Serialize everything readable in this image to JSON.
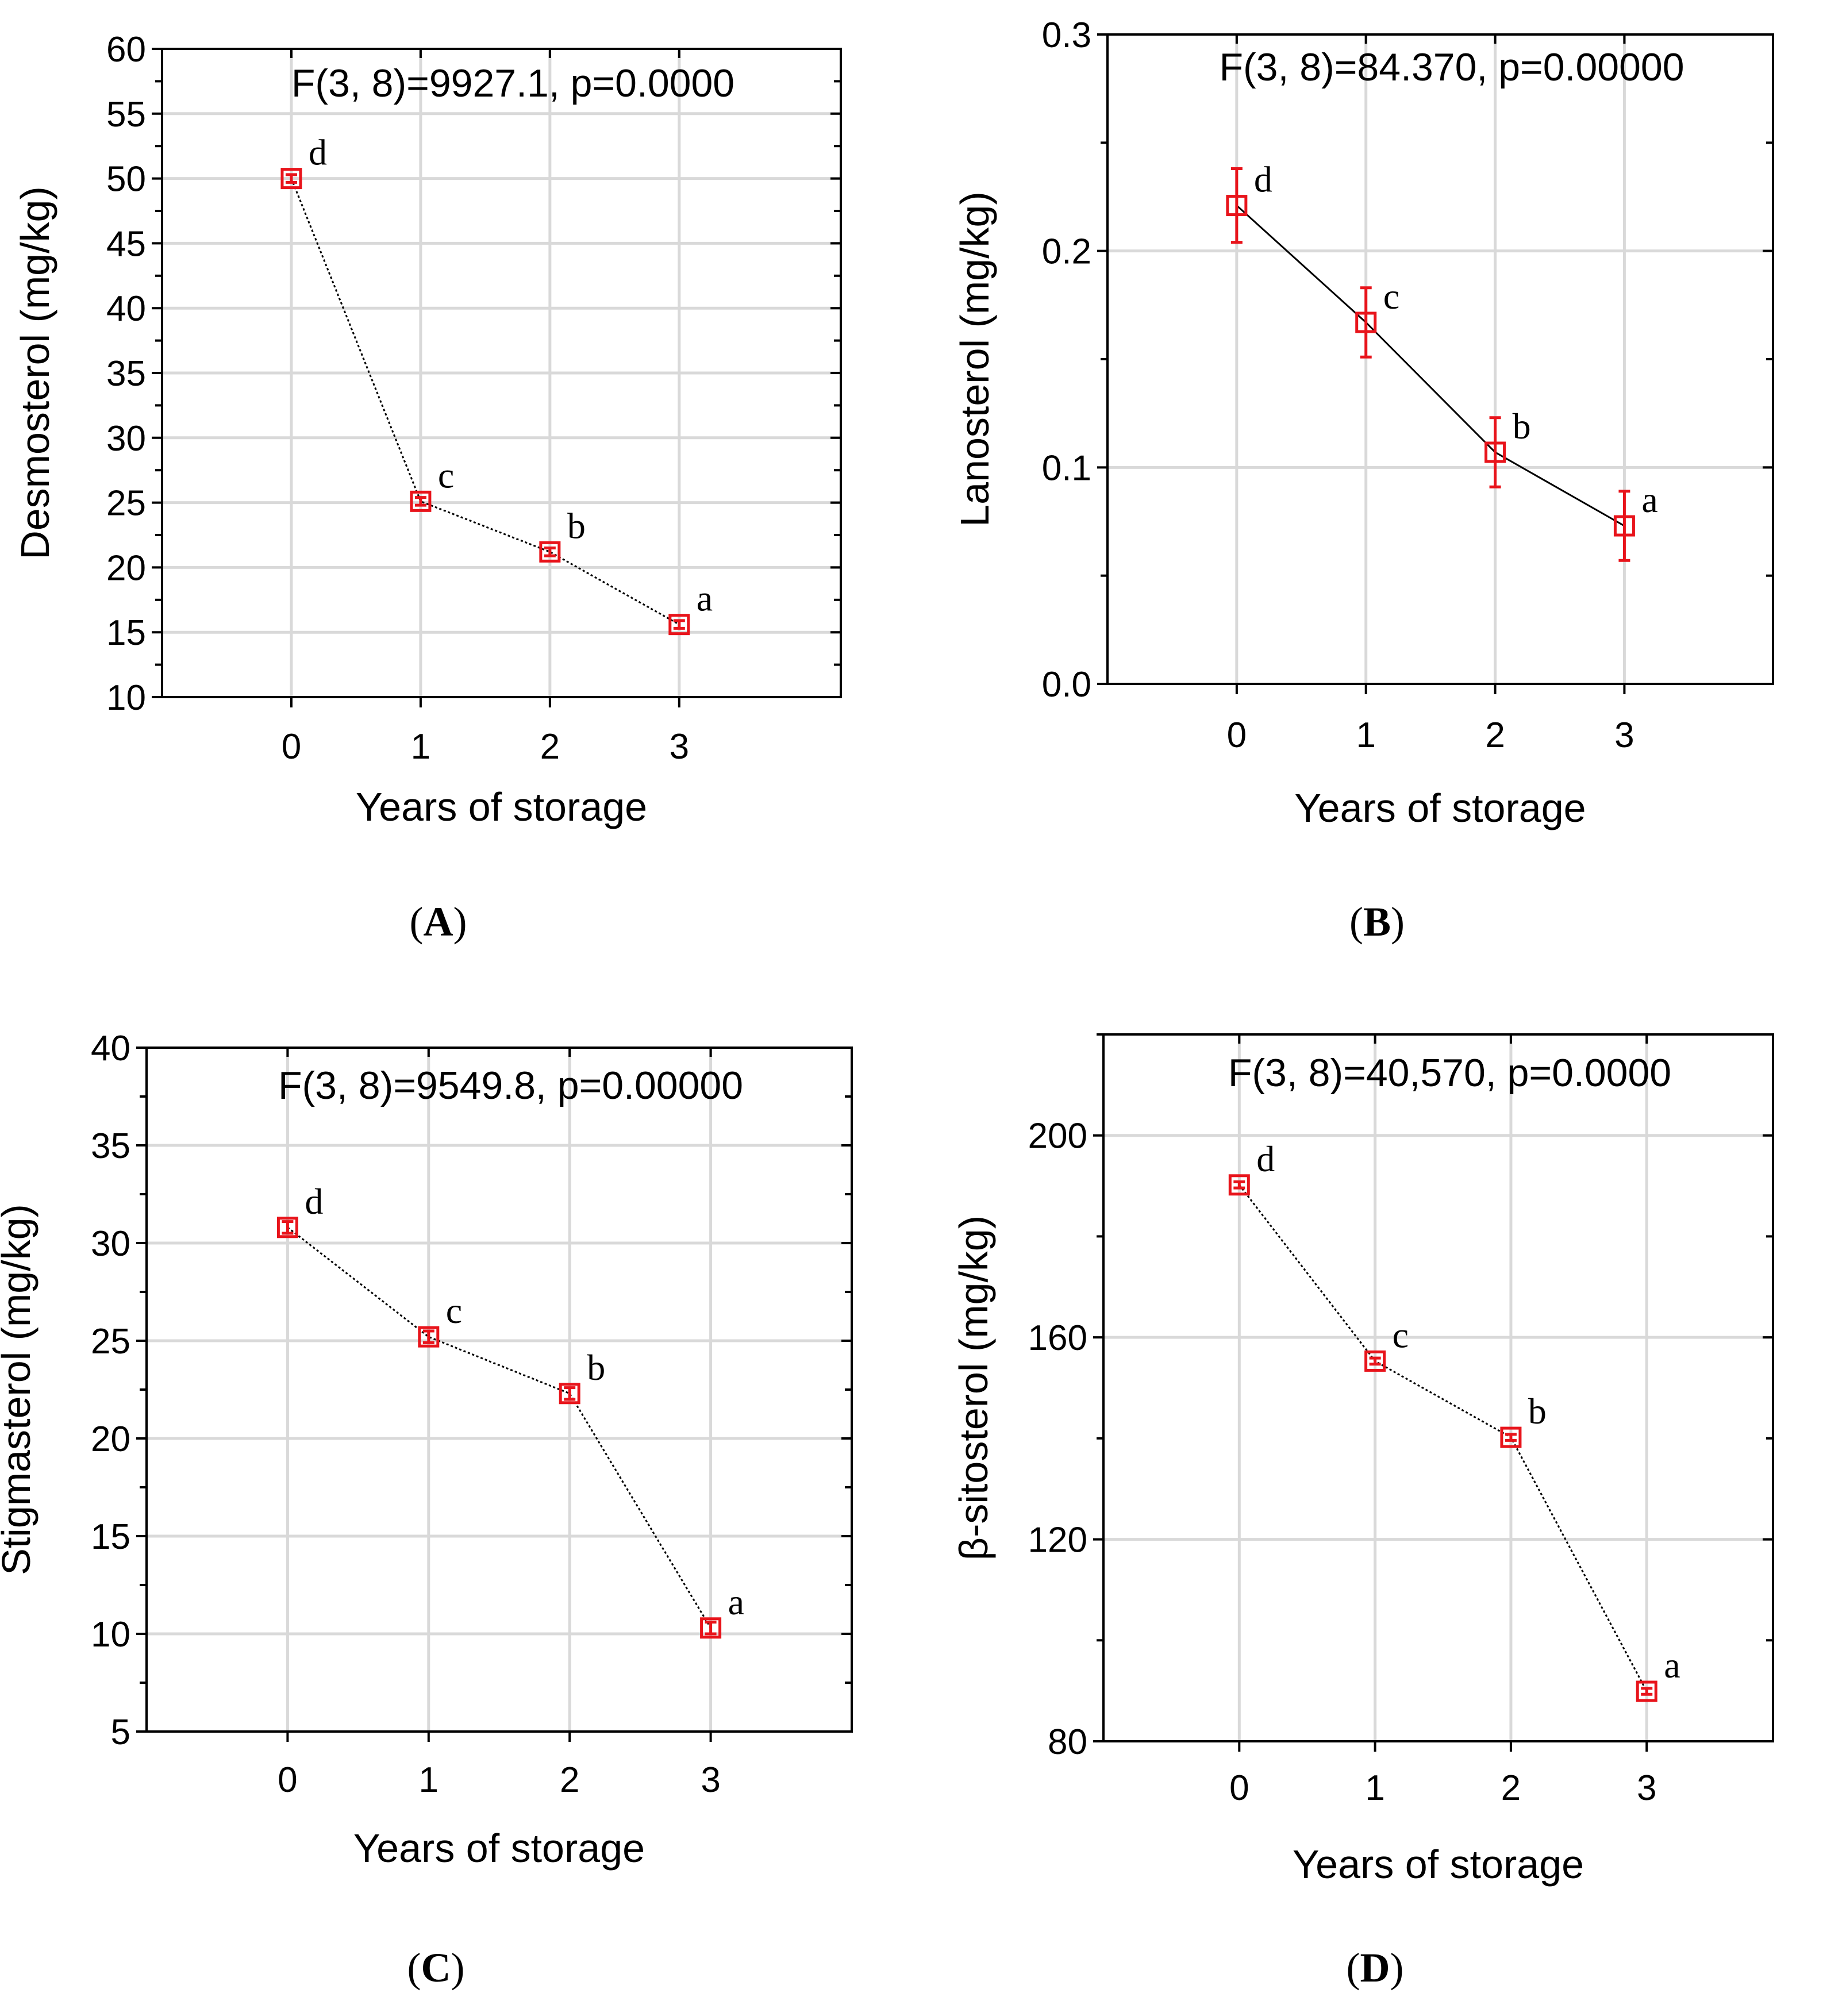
{
  "chart_data": [
    {
      "panel": "A",
      "type": "line",
      "caption": "A",
      "annotation": "F(3, 8)=9927.1, p=0.0000",
      "xlabel": "Years of storage",
      "ylabel": "Desmosterol (mg/kg)",
      "x": [
        0,
        1,
        2,
        3
      ],
      "x_tick_labels": [
        "0",
        "1",
        "2",
        "3"
      ],
      "ylim": [
        10,
        60
      ],
      "y_ticks": [
        10,
        15,
        20,
        25,
        30,
        35,
        40,
        45,
        50,
        55,
        60
      ],
      "y_tick_labels": [
        "10",
        "15",
        "20",
        "25",
        "30",
        "35",
        "40",
        "45",
        "50",
        "55",
        "60"
      ],
      "values": [
        50.0,
        25.1,
        21.2,
        15.6
      ],
      "error": [
        0.3,
        0.3,
        0.3,
        0.3
      ],
      "group_letters": [
        "d",
        "c",
        "b",
        "a"
      ],
      "line_style": "dotted",
      "grid": true
    },
    {
      "panel": "B",
      "type": "line",
      "caption": "B",
      "annotation": "F(3, 8)=84.370, p=0.00000",
      "xlabel": "Years of storage",
      "ylabel": "Lanosterol (mg/kg)",
      "x": [
        0,
        1,
        2,
        3
      ],
      "x_tick_labels": [
        "0",
        "1",
        "2",
        "3"
      ],
      "ylim": [
        0.0,
        0.3
      ],
      "y_ticks": [
        0.0,
        0.1,
        0.2,
        0.3
      ],
      "y_tick_labels": [
        "0.0",
        "0.1",
        "0.2",
        "0.3"
      ],
      "values": [
        0.221,
        0.167,
        0.107,
        0.073
      ],
      "error": [
        0.017,
        0.016,
        0.016,
        0.016
      ],
      "group_letters": [
        "d",
        "c",
        "b",
        "a"
      ],
      "line_style": "solid",
      "grid": true
    },
    {
      "panel": "C",
      "type": "line",
      "caption": "C",
      "annotation": "F(3, 8)=9549.8, p=0.00000",
      "xlabel": "Years of storage",
      "ylabel": "Stigmasterol (mg/kg)",
      "x": [
        0,
        1,
        2,
        3
      ],
      "x_tick_labels": [
        "0",
        "1",
        "2",
        "3"
      ],
      "ylim": [
        5,
        40
      ],
      "y_ticks": [
        5,
        10,
        15,
        20,
        25,
        30,
        35,
        40
      ],
      "y_tick_labels": [
        "5",
        "10",
        "15",
        "20",
        "25",
        "30",
        "35",
        "40"
      ],
      "values": [
        30.8,
        25.2,
        22.3,
        10.3
      ],
      "error": [
        0.3,
        0.3,
        0.3,
        0.3
      ],
      "group_letters": [
        "d",
        "c",
        "b",
        "a"
      ],
      "line_style": "dotted",
      "grid": true
    },
    {
      "panel": "D",
      "type": "line",
      "caption": "D",
      "annotation": "F(3, 8)=40,570, p=0.0000",
      "xlabel": "Years of storage",
      "ylabel": "β-sitosterol (mg/kg)",
      "x": [
        0,
        1,
        2,
        3
      ],
      "x_tick_labels": [
        "0",
        "1",
        "2",
        "3"
      ],
      "ylim": [
        80,
        220
      ],
      "y_ticks": [
        80,
        120,
        160,
        200
      ],
      "y_tick_labels": [
        "80",
        "120",
        "160",
        "200"
      ],
      "values": [
        190.2,
        155.3,
        140.2,
        89.9
      ],
      "error": [
        0.6,
        0.6,
        0.6,
        0.6
      ],
      "group_letters": [
        "d",
        "c",
        "b",
        "a"
      ],
      "line_style": "dotted",
      "grid": true
    }
  ],
  "colors": {
    "marker": "#e8141b",
    "line": "#000000",
    "grid": "#d9d9d9",
    "axis": "#000000"
  }
}
